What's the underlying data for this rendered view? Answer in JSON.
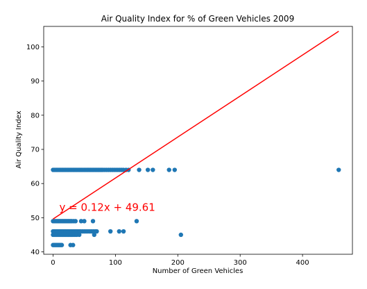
{
  "chart_data": {
    "type": "scatter",
    "title": "Air Quality Index for % of Green Vehicles 2009",
    "xlabel": "Number of Green Vehicles",
    "ylabel": "Air Quality Index",
    "xlim": [
      -15,
      480
    ],
    "ylim": [
      39.3,
      106
    ],
    "xticks": [
      0,
      100,
      200,
      300,
      400
    ],
    "yticks": [
      40,
      50,
      60,
      70,
      80,
      90,
      100
    ],
    "grid": false,
    "legend": "none",
    "colors": {
      "points": "#1f77b4",
      "regression": "#ff0000"
    },
    "series": [
      {
        "values": [
          [
            0,
            64
          ],
          [
            2,
            64
          ],
          [
            4,
            64
          ],
          [
            6,
            64
          ],
          [
            8,
            64
          ],
          [
            10,
            64
          ],
          [
            12,
            64
          ],
          [
            14,
            64
          ],
          [
            16,
            64
          ],
          [
            18,
            64
          ],
          [
            20,
            64
          ],
          [
            22,
            64
          ],
          [
            24,
            64
          ],
          [
            26,
            64
          ],
          [
            28,
            64
          ],
          [
            30,
            64
          ],
          [
            32,
            64
          ],
          [
            34,
            64
          ],
          [
            36,
            64
          ],
          [
            38,
            64
          ],
          [
            40,
            64
          ],
          [
            42,
            64
          ],
          [
            44,
            64
          ],
          [
            46,
            64
          ],
          [
            48,
            64
          ],
          [
            50,
            64
          ],
          [
            52,
            64
          ],
          [
            54,
            64
          ],
          [
            56,
            64
          ],
          [
            58,
            64
          ],
          [
            60,
            64
          ],
          [
            62,
            64
          ],
          [
            64,
            64
          ],
          [
            66,
            64
          ],
          [
            68,
            64
          ],
          [
            70,
            64
          ],
          [
            72,
            64
          ],
          [
            74,
            64
          ],
          [
            76,
            64
          ],
          [
            78,
            64
          ],
          [
            80,
            64
          ],
          [
            83,
            64
          ],
          [
            86,
            64
          ],
          [
            89,
            64
          ],
          [
            92,
            64
          ],
          [
            95,
            64
          ],
          [
            98,
            64
          ],
          [
            101,
            64
          ],
          [
            104,
            64
          ],
          [
            107,
            64
          ],
          [
            110,
            64
          ],
          [
            113,
            64
          ],
          [
            117,
            64
          ],
          [
            121,
            64
          ],
          [
            138,
            64
          ],
          [
            152,
            64
          ],
          [
            160,
            64
          ],
          [
            186,
            64
          ],
          [
            195,
            64
          ],
          [
            458,
            64
          ],
          [
            0,
            49
          ],
          [
            2,
            49
          ],
          [
            4,
            49
          ],
          [
            6,
            49
          ],
          [
            8,
            49
          ],
          [
            10,
            49
          ],
          [
            12,
            49
          ],
          [
            14,
            49
          ],
          [
            16,
            49
          ],
          [
            18,
            49
          ],
          [
            20,
            49
          ],
          [
            22,
            49
          ],
          [
            24,
            49
          ],
          [
            26,
            49
          ],
          [
            28,
            49
          ],
          [
            30,
            49
          ],
          [
            33,
            49
          ],
          [
            36,
            49
          ],
          [
            45,
            49
          ],
          [
            50,
            49
          ],
          [
            64,
            49
          ],
          [
            134,
            49
          ],
          [
            0,
            46
          ],
          [
            2,
            46
          ],
          [
            4,
            46
          ],
          [
            6,
            46
          ],
          [
            8,
            46
          ],
          [
            10,
            46
          ],
          [
            12,
            46
          ],
          [
            14,
            46
          ],
          [
            16,
            46
          ],
          [
            18,
            46
          ],
          [
            20,
            46
          ],
          [
            22,
            46
          ],
          [
            24,
            46
          ],
          [
            26,
            46
          ],
          [
            28,
            46
          ],
          [
            30,
            46
          ],
          [
            32,
            46
          ],
          [
            34,
            46
          ],
          [
            36,
            46
          ],
          [
            38,
            46
          ],
          [
            40,
            46
          ],
          [
            42,
            46
          ],
          [
            44,
            46
          ],
          [
            47,
            46
          ],
          [
            50,
            46
          ],
          [
            53,
            46
          ],
          [
            56,
            46
          ],
          [
            59,
            46
          ],
          [
            62,
            46
          ],
          [
            65,
            46
          ],
          [
            68,
            46
          ],
          [
            70,
            46
          ],
          [
            92,
            46
          ],
          [
            106,
            46
          ],
          [
            113,
            46
          ],
          [
            0,
            45
          ],
          [
            2,
            45
          ],
          [
            4,
            45
          ],
          [
            6,
            45
          ],
          [
            8,
            45
          ],
          [
            10,
            45
          ],
          [
            12,
            45
          ],
          [
            14,
            45
          ],
          [
            16,
            45
          ],
          [
            18,
            45
          ],
          [
            20,
            45
          ],
          [
            22,
            45
          ],
          [
            24,
            45
          ],
          [
            26,
            45
          ],
          [
            28,
            45
          ],
          [
            30,
            45
          ],
          [
            32,
            45
          ],
          [
            35,
            45
          ],
          [
            38,
            45
          ],
          [
            42,
            45
          ],
          [
            66,
            45
          ],
          [
            205,
            45
          ],
          [
            0,
            42
          ],
          [
            2,
            42
          ],
          [
            4,
            42
          ],
          [
            6,
            42
          ],
          [
            8,
            42
          ],
          [
            10,
            42
          ],
          [
            12,
            42
          ],
          [
            14,
            42
          ],
          [
            28,
            42
          ],
          [
            32,
            42
          ]
        ]
      }
    ],
    "regression": {
      "slope": 0.12,
      "intercept": 49.61,
      "x_range": [
        0,
        458
      ]
    },
    "annotation": {
      "text": "y = 0.12x + 49.61",
      "x": 10,
      "y": 52
    }
  }
}
